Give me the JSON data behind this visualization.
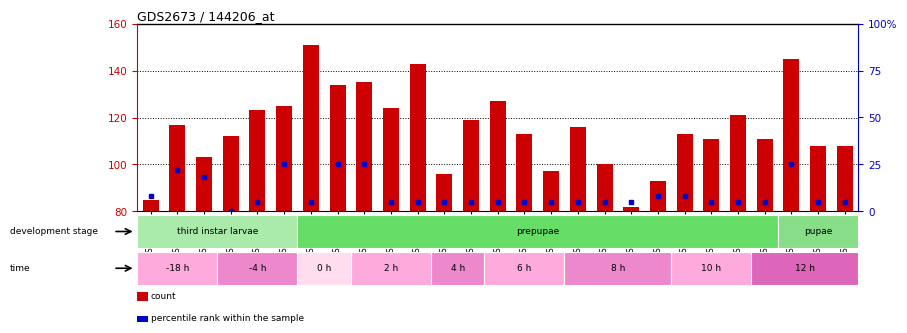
{
  "title": "GDS2673 / 144206_at",
  "samples": [
    "GSM67088",
    "GSM67089",
    "GSM67090",
    "GSM67091",
    "GSM67092",
    "GSM67093",
    "GSM67094",
    "GSM67095",
    "GSM67096",
    "GSM67097",
    "GSM67098",
    "GSM67099",
    "GSM67100",
    "GSM67101",
    "GSM67102",
    "GSM67103",
    "GSM67105",
    "GSM67106",
    "GSM67107",
    "GSM67108",
    "GSM67109",
    "GSM67111",
    "GSM67113",
    "GSM67114",
    "GSM67115",
    "GSM67116",
    "GSM67117"
  ],
  "counts": [
    85,
    117,
    103,
    112,
    123,
    125,
    151,
    134,
    135,
    124,
    143,
    96,
    119,
    127,
    113,
    97,
    116,
    100,
    82,
    93,
    113,
    111,
    121,
    111,
    145,
    108,
    108
  ],
  "percentile_ranks": [
    8,
    22,
    18,
    0,
    5,
    25,
    5,
    25,
    25,
    5,
    5,
    5,
    5,
    5,
    5,
    5,
    5,
    5,
    5,
    8,
    8,
    5,
    5,
    5,
    25,
    5,
    5
  ],
  "bar_color": "#cc0000",
  "pct_color": "#0000cc",
  "ymin": 80,
  "ymax": 160,
  "yticks": [
    80,
    100,
    120,
    140,
    160
  ],
  "right_yticks": [
    0,
    25,
    50,
    75,
    100
  ],
  "dev_stage_groups": [
    {
      "label": "third instar larvae",
      "start": 0,
      "end": 6,
      "color": "#aaeaaa"
    },
    {
      "label": "prepupae",
      "start": 6,
      "end": 24,
      "color": "#66dd66"
    },
    {
      "label": "pupae",
      "start": 24,
      "end": 27,
      "color": "#88dd88"
    }
  ],
  "time_groups": [
    {
      "label": "-18 h",
      "start": 0,
      "end": 3,
      "color": "#ffaadd"
    },
    {
      "label": "-4 h",
      "start": 3,
      "end": 6,
      "color": "#ee88cc"
    },
    {
      "label": "0 h",
      "start": 6,
      "end": 8,
      "color": "#ffddee"
    },
    {
      "label": "2 h",
      "start": 8,
      "end": 11,
      "color": "#ffaadd"
    },
    {
      "label": "4 h",
      "start": 11,
      "end": 13,
      "color": "#ee88cc"
    },
    {
      "label": "6 h",
      "start": 13,
      "end": 16,
      "color": "#ffaadd"
    },
    {
      "label": "8 h",
      "start": 16,
      "end": 20,
      "color": "#ee88cc"
    },
    {
      "label": "10 h",
      "start": 20,
      "end": 23,
      "color": "#ffaadd"
    },
    {
      "label": "12 h",
      "start": 23,
      "end": 27,
      "color": "#dd66bb"
    }
  ],
  "left_label_color": "#cc0000",
  "right_label_color": "#0000cc"
}
